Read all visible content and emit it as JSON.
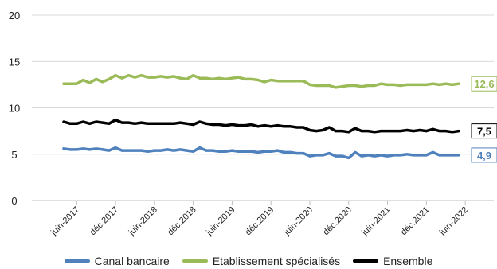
{
  "chart_data": {
    "type": "line",
    "ylim": [
      0,
      20
    ],
    "yticks": [
      "0",
      "5",
      "10",
      "15",
      "20"
    ],
    "grid": true,
    "legend_position": "bottom",
    "x_tick_labels": [
      "juin-2017",
      "déc.2017",
      "juin-2018",
      "déc.2018",
      "juin-2019",
      "déc.2019",
      "juin-2020",
      "déc.2020",
      "juin-2021",
      "déc.2021",
      "juin-2022"
    ],
    "x": [
      "avr.-2017",
      "mai-2017",
      "juin-2017",
      "juil.-2017",
      "août-2017",
      "sept.-2017",
      "oct.-2017",
      "nov.-2017",
      "déc.2017",
      "janv.-2018",
      "févr.-2018",
      "mars-2018",
      "avr.-2018",
      "mai-2018",
      "juin-2018",
      "juil.-2018",
      "août-2018",
      "sept.-2018",
      "oct.-2018",
      "nov.-2018",
      "déc.2018",
      "janv.-2019",
      "févr.-2019",
      "mars-2019",
      "avr.-2019",
      "mai-2019",
      "juin-2019",
      "juil.-2019",
      "août-2019",
      "sept.-2019",
      "oct.-2019",
      "nov.-2019",
      "déc.2019",
      "janv.-2020",
      "févr.-2020",
      "mars-2020",
      "avr.-2020",
      "mai-2020",
      "juin-2020",
      "juil.-2020",
      "août-2020",
      "sept.-2020",
      "oct.-2020",
      "nov.-2020",
      "déc.2020",
      "janv.-2021",
      "févr.-2021",
      "mars-2021",
      "avr.-2021",
      "mai-2021",
      "juin-2021",
      "juil.-2021",
      "août-2021",
      "sept.-2021",
      "oct.-2021",
      "nov.-2021",
      "déc.2021",
      "janv.-2022",
      "févr.-2022",
      "mars-2022",
      "avr.-2022",
      "mai-2022"
    ],
    "series": [
      {
        "name": "Canal bancaire",
        "color": "#4f81bd",
        "end_label": "4,9",
        "values": [
          5.6,
          5.5,
          5.5,
          5.6,
          5.5,
          5.6,
          5.5,
          5.4,
          5.7,
          5.4,
          5.4,
          5.4,
          5.4,
          5.3,
          5.4,
          5.4,
          5.5,
          5.4,
          5.5,
          5.4,
          5.3,
          5.7,
          5.4,
          5.4,
          5.3,
          5.3,
          5.4,
          5.3,
          5.3,
          5.3,
          5.2,
          5.3,
          5.3,
          5.4,
          5.2,
          5.2,
          5.1,
          5.1,
          4.8,
          4.9,
          4.9,
          5.1,
          4.8,
          4.8,
          4.6,
          5.2,
          4.8,
          4.9,
          4.8,
          4.9,
          4.8,
          4.9,
          4.9,
          5.0,
          4.9,
          4.9,
          4.9,
          5.2,
          4.9,
          4.9,
          4.9,
          4.9
        ]
      },
      {
        "name": "Etablissement spécialisés",
        "color": "#9bbb59",
        "end_label": "12,6",
        "values": [
          12.6,
          12.6,
          12.6,
          13.0,
          12.7,
          13.1,
          12.8,
          13.1,
          13.5,
          13.2,
          13.5,
          13.3,
          13.5,
          13.3,
          13.3,
          13.4,
          13.3,
          13.4,
          13.2,
          13.1,
          13.5,
          13.2,
          13.2,
          13.1,
          13.2,
          13.1,
          13.2,
          13.3,
          13.1,
          13.1,
          13.0,
          12.8,
          13.0,
          12.9,
          12.9,
          12.9,
          12.9,
          12.9,
          12.5,
          12.4,
          12.4,
          12.4,
          12.2,
          12.3,
          12.4,
          12.4,
          12.3,
          12.4,
          12.4,
          12.6,
          12.5,
          12.5,
          12.4,
          12.5,
          12.5,
          12.5,
          12.5,
          12.6,
          12.5,
          12.6,
          12.5,
          12.6
        ]
      },
      {
        "name": "Ensemble",
        "color": "#000000",
        "end_label": "7,5",
        "values": [
          8.5,
          8.3,
          8.3,
          8.5,
          8.3,
          8.5,
          8.4,
          8.3,
          8.7,
          8.4,
          8.4,
          8.3,
          8.4,
          8.3,
          8.3,
          8.3,
          8.3,
          8.3,
          8.4,
          8.3,
          8.2,
          8.5,
          8.3,
          8.2,
          8.2,
          8.1,
          8.2,
          8.1,
          8.1,
          8.2,
          8.0,
          8.1,
          8.0,
          8.1,
          8.0,
          8.0,
          7.9,
          7.9,
          7.6,
          7.5,
          7.6,
          7.9,
          7.5,
          7.5,
          7.4,
          7.8,
          7.5,
          7.5,
          7.4,
          7.5,
          7.5,
          7.5,
          7.5,
          7.6,
          7.5,
          7.6,
          7.5,
          7.7,
          7.5,
          7.5,
          7.4,
          7.5
        ]
      }
    ]
  }
}
